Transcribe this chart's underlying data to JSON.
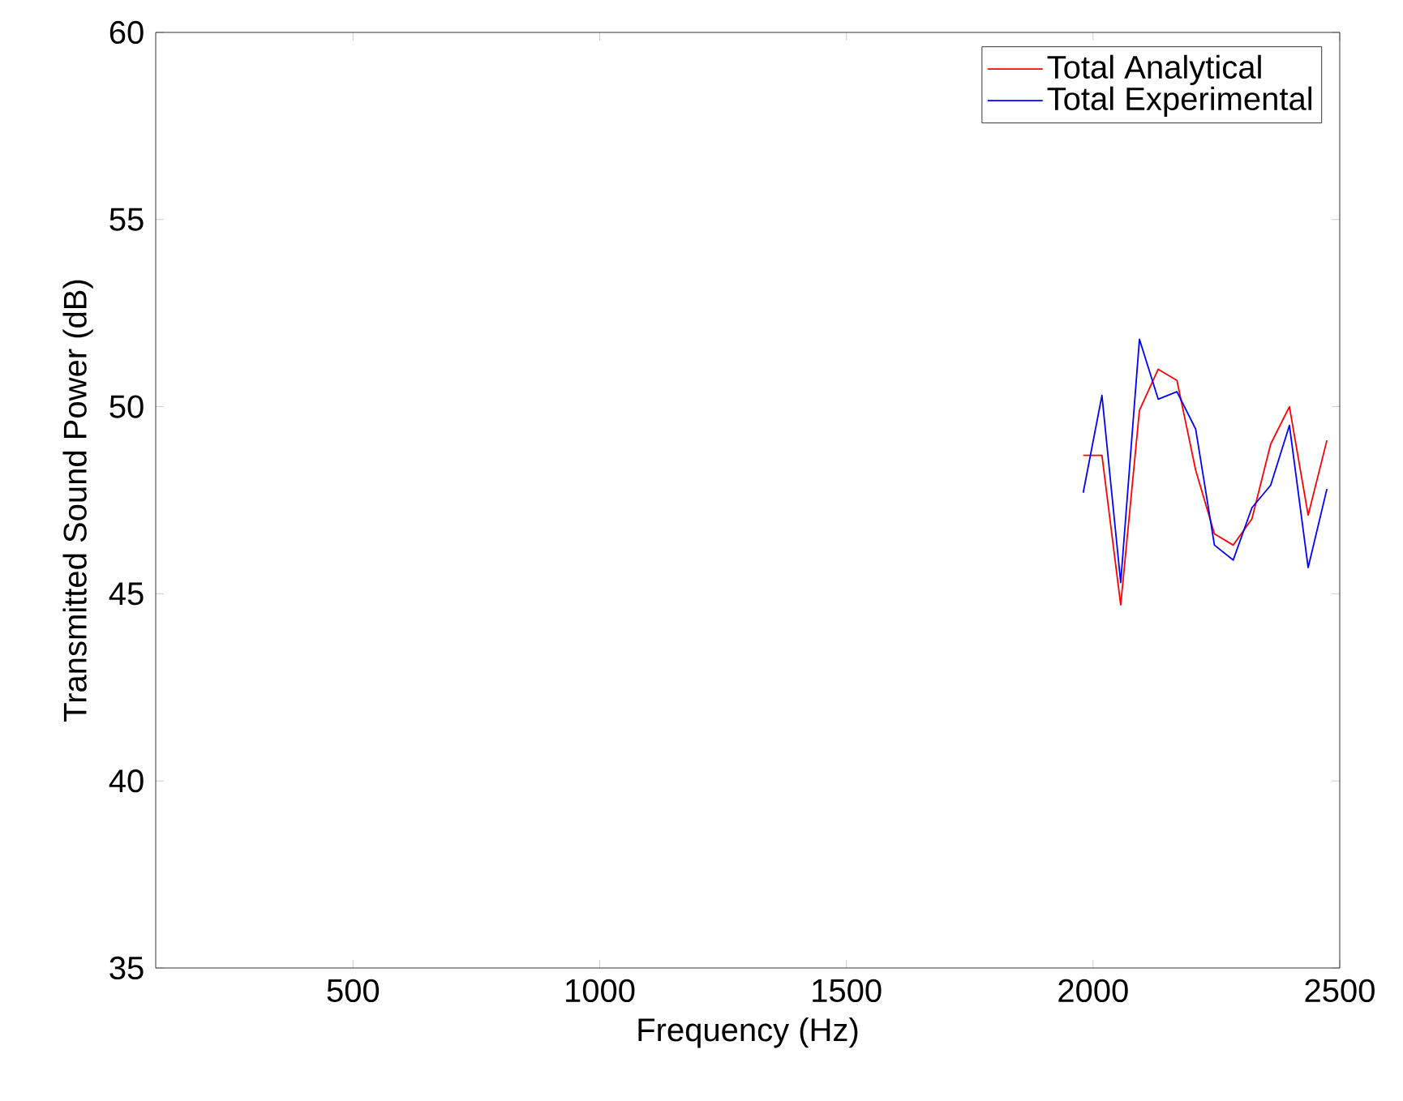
{
  "chart_data": {
    "type": "line",
    "xlabel": "Frequency (Hz)",
    "ylabel": "Transmitted Sound Power (dB)",
    "x": [
      1980,
      2018,
      2056,
      2094,
      2132,
      2170,
      2208,
      2246,
      2284,
      2322,
      2360,
      2398,
      2436,
      2474
    ],
    "series": [
      {
        "name": "Total Analytical",
        "color": "#ff0000",
        "values": [
          48.7,
          48.7,
          44.7,
          49.9,
          51.0,
          50.7,
          48.3,
          46.6,
          46.3,
          47.0,
          49.0,
          50.0,
          47.1,
          49.1
        ]
      },
      {
        "name": "Total Experimental",
        "color": "#0000ff",
        "values": [
          47.7,
          50.3,
          45.3,
          51.8,
          50.2,
          50.4,
          49.4,
          46.3,
          45.9,
          47.3,
          47.9,
          49.5,
          45.7,
          47.8
        ]
      }
    ],
    "xlim": [
      100,
      2500
    ],
    "ylim": [
      35,
      60
    ],
    "xticks": [
      500,
      1000,
      1500,
      2000,
      2500
    ],
    "yticks": [
      35,
      40,
      45,
      50,
      55,
      60
    ],
    "legend": "top right",
    "grid": false,
    "marker": "none",
    "line_style": "solid"
  }
}
